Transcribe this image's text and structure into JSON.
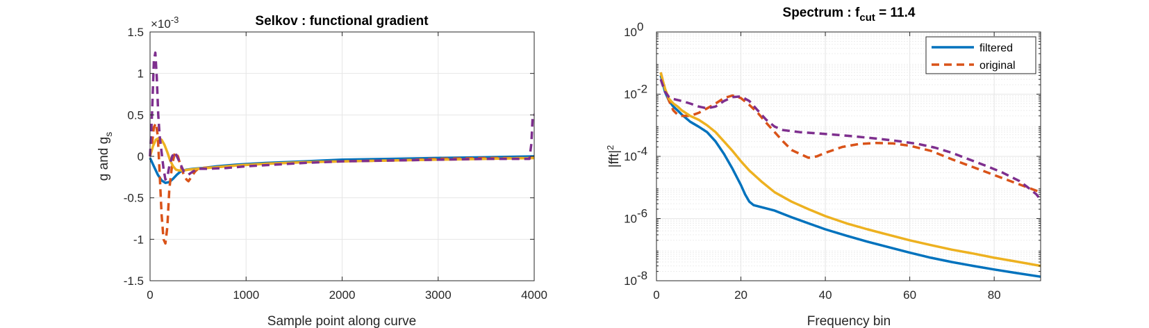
{
  "colors": {
    "blue": "#0072BD",
    "orange": "#D95319",
    "yellow": "#EDB120",
    "purple": "#7E2F8E",
    "grid": "#E6E6E6",
    "axis": "#262626"
  },
  "chart_data": [
    {
      "type": "line",
      "title": "Selkov : functional gradient",
      "xlabel": "Sample point along curve",
      "ylabel_main": "g and g",
      "ylabel_sub": "s",
      "exponent_label": "×10",
      "exponent_value": "-3",
      "xlim": [
        0,
        4000
      ],
      "ylim": [
        -1.5,
        1.5
      ],
      "grid": true,
      "x_ticks": [
        0,
        1000,
        2000,
        3000,
        4000
      ],
      "x_tick_labels": [
        "0",
        "1000",
        "2000",
        "3000",
        "4000"
      ],
      "y_ticks": [
        1.5,
        1,
        0.5,
        0,
        -0.5,
        -1,
        -1.5
      ],
      "y_tick_labels": [
        "1.5",
        "1",
        "0.5",
        "0",
        "-0.5",
        "-1",
        "-1.5"
      ],
      "series": [
        {
          "color": "#0072BD",
          "dash": "solid",
          "x": [
            0,
            40,
            80,
            120,
            160,
            200,
            240,
            280,
            320,
            380,
            450,
            550,
            700,
            900,
            1200,
            1600,
            2000,
            2500,
            3000,
            3500,
            4000
          ],
          "y": [
            -0.02,
            -0.12,
            -0.22,
            -0.29,
            -0.32,
            -0.31,
            -0.27,
            -0.22,
            -0.18,
            -0.16,
            -0.15,
            -0.14,
            -0.12,
            -0.1,
            -0.08,
            -0.06,
            -0.04,
            -0.03,
            -0.02,
            -0.01,
            0.0
          ]
        },
        {
          "color": "#D95319",
          "dash": "dashed",
          "x": [
            0,
            20,
            40,
            60,
            80,
            100,
            120,
            140,
            160,
            180,
            200,
            230,
            260,
            290,
            320,
            350,
            380,
            400,
            430,
            470,
            500,
            550,
            700,
            900,
            1200,
            1600,
            2000,
            2500,
            3000,
            3500,
            3980,
            4000
          ],
          "y": [
            0.0,
            0.15,
            0.35,
            0.4,
            0.25,
            -0.2,
            -0.7,
            -1.0,
            -1.05,
            -0.85,
            -0.4,
            -0.1,
            0.05,
            0.0,
            -0.12,
            -0.22,
            -0.28,
            -0.3,
            -0.25,
            -0.18,
            -0.15,
            -0.14,
            -0.13,
            -0.11,
            -0.09,
            -0.07,
            -0.06,
            -0.05,
            -0.03,
            -0.02,
            -0.02,
            -0.02
          ]
        },
        {
          "color": "#EDB120",
          "dash": "solid",
          "x": [
            0,
            30,
            60,
            90,
            120,
            150,
            180,
            210,
            240,
            270,
            300,
            350,
            400,
            500,
            700,
            900,
            1200,
            1600,
            2000,
            2500,
            3000,
            3500,
            4000
          ],
          "y": [
            0.0,
            0.12,
            0.2,
            0.22,
            0.2,
            0.14,
            0.05,
            -0.05,
            -0.12,
            -0.16,
            -0.17,
            -0.17,
            -0.16,
            -0.15,
            -0.13,
            -0.11,
            -0.09,
            -0.07,
            -0.06,
            -0.05,
            -0.04,
            -0.03,
            -0.02
          ]
        },
        {
          "color": "#7E2F8E",
          "dash": "dashed",
          "x": [
            0,
            20,
            40,
            55,
            70,
            85,
            100,
            120,
            140,
            160,
            180,
            200,
            230,
            260,
            300,
            350,
            400,
            450,
            500,
            600,
            800,
            1000,
            1300,
            1600,
            2000,
            2500,
            3000,
            3500,
            3950,
            3970,
            3985,
            4000
          ],
          "y": [
            0.0,
            0.5,
            1.15,
            1.25,
            0.95,
            0.5,
            0.25,
            0.05,
            -0.15,
            -0.28,
            -0.25,
            -0.12,
            0.0,
            0.05,
            -0.05,
            -0.18,
            -0.22,
            -0.18,
            -0.15,
            -0.15,
            -0.14,
            -0.12,
            -0.1,
            -0.08,
            -0.06,
            -0.05,
            -0.04,
            -0.03,
            -0.03,
            0.15,
            0.5,
            0.5
          ]
        }
      ]
    },
    {
      "type": "line",
      "title_main": "Spectrum : f",
      "title_sub": "cut",
      "title_tail": " = 11.4",
      "xlabel": "Frequency bin",
      "ylabel_main": "|fft|",
      "ylabel_sup": "2",
      "yscale": "log",
      "xlim": [
        0,
        91
      ],
      "ylim": [
        1e-08,
        1
      ],
      "grid": true,
      "legend_position": "top-right",
      "x_ticks": [
        0,
        20,
        40,
        60,
        80
      ],
      "x_tick_labels": [
        "0",
        "20",
        "40",
        "60",
        "80"
      ],
      "y_ticks": [
        1,
        0.01,
        0.0001,
        1e-06,
        1e-08
      ],
      "y_tick_base": "10",
      "y_tick_exps": [
        "0",
        "-2",
        "-4",
        "-6",
        "-8"
      ],
      "legend": [
        {
          "label": "filtered",
          "color": "#0072BD",
          "dash": "solid"
        },
        {
          "label": "original",
          "color": "#D95319",
          "dash": "dashed"
        }
      ],
      "series": [
        {
          "name": "filtered",
          "color": "#0072BD",
          "dash": "solid",
          "x": [
            1,
            2,
            3,
            4,
            5,
            6,
            8,
            10,
            12,
            14,
            16,
            18,
            20,
            21,
            22,
            23,
            25,
            28,
            32,
            36,
            40,
            45,
            50,
            55,
            60,
            65,
            70,
            75,
            80,
            85,
            91
          ],
          "y": [
            0.04,
            0.012,
            0.006,
            0.004,
            0.003,
            0.0022,
            0.0013,
            0.0009,
            0.0006,
            0.0003,
            0.00012,
            4e-05,
            1.2e-05,
            6e-06,
            3.5e-06,
            2.7e-06,
            2.3e-06,
            1.8e-06,
            1.1e-06,
            7e-07,
            4.5e-07,
            2.8e-07,
            1.8e-07,
            1.2e-07,
            8e-08,
            5.5e-08,
            4e-08,
            3e-08,
            2.3e-08,
            1.8e-08,
            1.35e-08
          ]
        },
        {
          "name": "original",
          "color": "#D95319",
          "dash": "dashed",
          "x": [
            1,
            2,
            3,
            4,
            5,
            6,
            8,
            10,
            12,
            14,
            16,
            18,
            20,
            22,
            24,
            26,
            28,
            30,
            32,
            34,
            36,
            38,
            40,
            44,
            48,
            52,
            56,
            60,
            65,
            70,
            75,
            80,
            85,
            91
          ],
          "y": [
            0.05,
            0.015,
            0.006,
            0.003,
            0.0022,
            0.002,
            0.002,
            0.0025,
            0.0035,
            0.005,
            0.0075,
            0.009,
            0.0075,
            0.0045,
            0.0025,
            0.0012,
            0.0006,
            0.0003,
            0.00016,
            0.00012,
            9e-05,
            0.0001,
            0.00013,
            0.0002,
            0.00025,
            0.00027,
            0.00026,
            0.00022,
            0.00015,
            8e-05,
            4.5e-05,
            2.5e-05,
            1.4e-05,
            7e-06
          ]
        },
        {
          "color": "#EDB120",
          "dash": "solid",
          "x": [
            1,
            2,
            3,
            4,
            5,
            6,
            8,
            10,
            12,
            14,
            16,
            18,
            20,
            22,
            25,
            28,
            32,
            36,
            40,
            45,
            50,
            55,
            60,
            65,
            70,
            75,
            80,
            85,
            91
          ],
          "y": [
            0.05,
            0.015,
            0.007,
            0.005,
            0.004,
            0.003,
            0.002,
            0.0015,
            0.001,
            0.0006,
            0.0003,
            0.00015,
            7e-05,
            3.5e-05,
            1.5e-05,
            7e-06,
            3.5e-06,
            2e-06,
            1.2e-06,
            7e-07,
            4.5e-07,
            3e-07,
            2e-07,
            1.4e-07,
            1e-07,
            7.5e-08,
            5.5e-08,
            4.2e-08,
            3e-08
          ]
        },
        {
          "color": "#7E2F8E",
          "dash": "dashed",
          "x": [
            1,
            2,
            3,
            4,
            6,
            8,
            10,
            12,
            14,
            16,
            18,
            20,
            22,
            24,
            26,
            28,
            30,
            34,
            38,
            42,
            46,
            50,
            54,
            58,
            62,
            66,
            70,
            74,
            78,
            82,
            86,
            88,
            90,
            91
          ],
          "y": [
            0.03,
            0.012,
            0.008,
            0.007,
            0.006,
            0.005,
            0.004,
            0.0035,
            0.004,
            0.006,
            0.008,
            0.0085,
            0.006,
            0.003,
            0.0015,
            0.0009,
            0.0007,
            0.0006,
            0.00055,
            0.0005,
            0.00045,
            0.0004,
            0.00035,
            0.0003,
            0.00025,
            0.00019,
            0.00013,
            8e-05,
            5e-05,
            3e-05,
            1.6e-05,
            1e-05,
            6e-06,
            4e-06
          ]
        }
      ]
    }
  ]
}
